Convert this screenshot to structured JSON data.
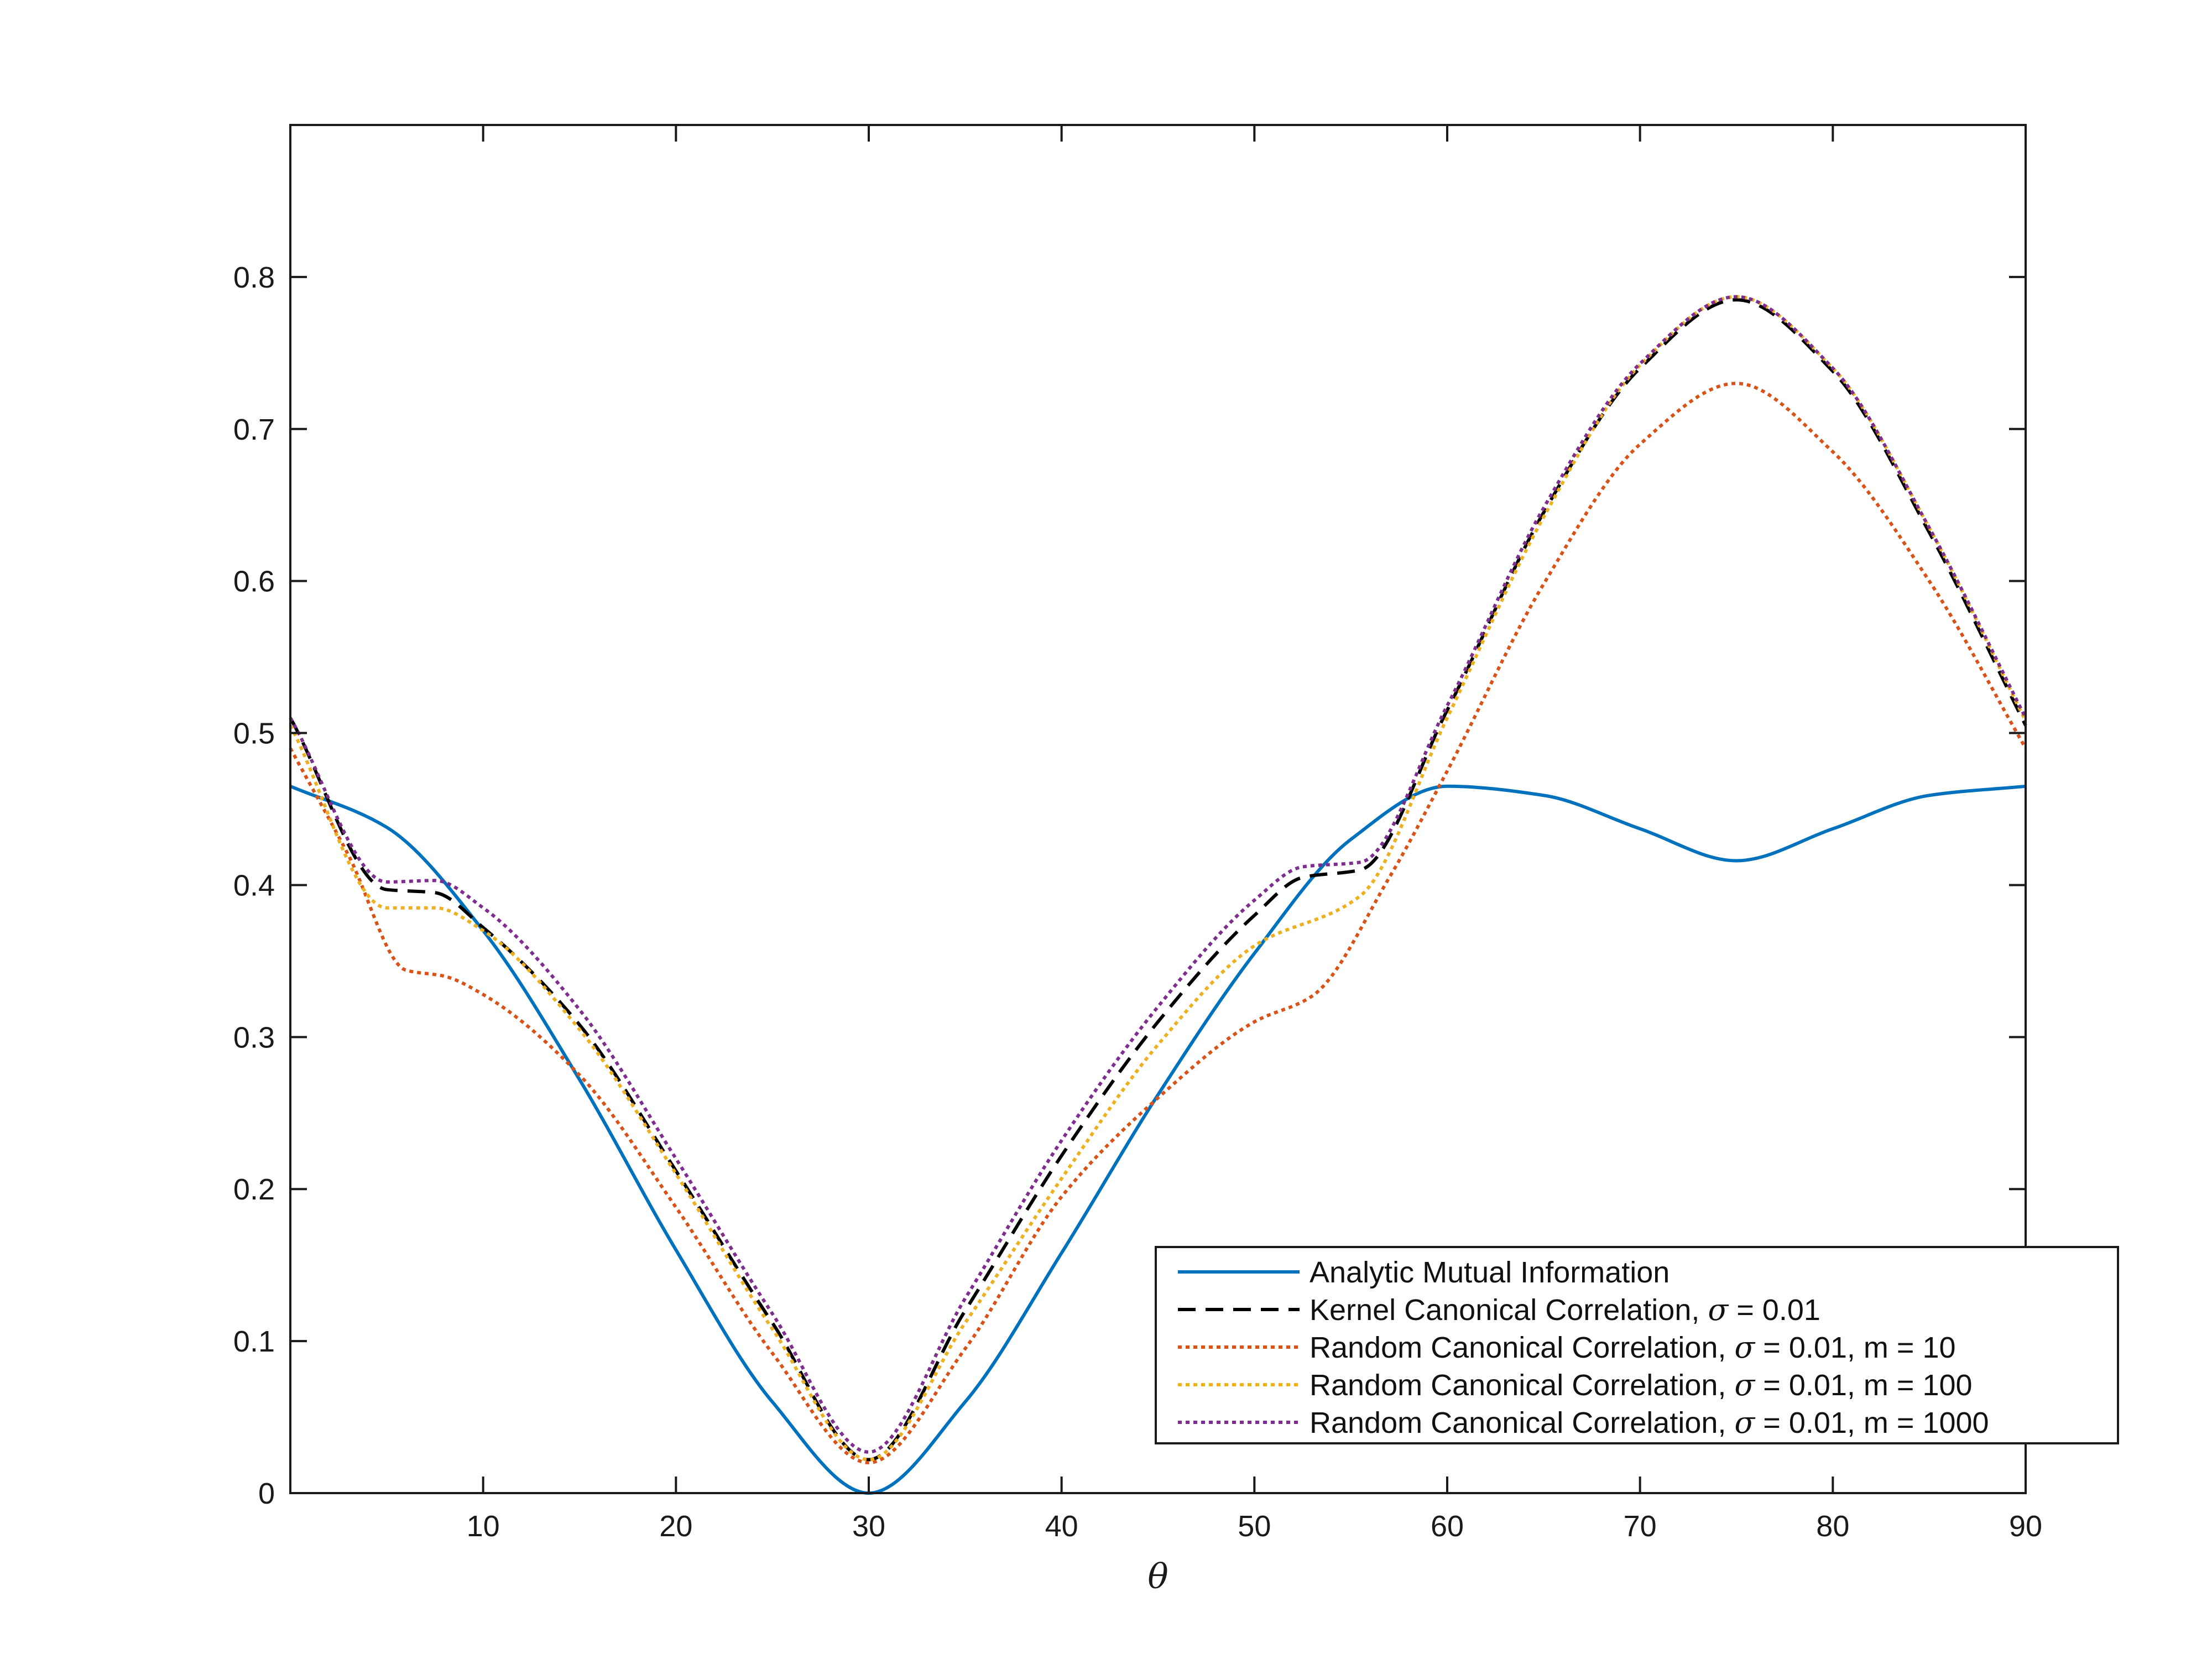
{
  "chart_data": {
    "type": "line",
    "title": "",
    "xlabel": "θ",
    "ylabel": "",
    "xlim": [
      0,
      90
    ],
    "ylim": [
      0,
      0.9
    ],
    "xticks": [
      10,
      20,
      30,
      40,
      50,
      60,
      70,
      80,
      90
    ],
    "yticks": [
      0,
      0.1,
      0.2,
      0.3,
      0.4,
      0.5,
      0.6,
      0.7,
      0.8
    ],
    "xtick_labels": [
      "10",
      "20",
      "30",
      "40",
      "50",
      "60",
      "70",
      "80",
      "90"
    ],
    "ytick_labels": [
      "0",
      "0.1",
      "0.2",
      "0.3",
      "0.4",
      "0.5",
      "0.6",
      "0.7",
      "0.8"
    ],
    "grid": false,
    "legend_position": "bottom-right",
    "series": [
      {
        "name": "Analytic Mutual Information",
        "color": "#0072BD",
        "style": "solid",
        "x": [
          0,
          5,
          10,
          15,
          20,
          25,
          30,
          35,
          40,
          45,
          50,
          55,
          60,
          65,
          70,
          75,
          80,
          85,
          90
        ],
        "y": [
          0.465,
          0.438,
          0.37,
          0.272,
          0.16,
          0.06,
          0,
          0.06,
          0.158,
          0.262,
          0.355,
          0.43,
          0.465,
          0.459,
          0.437,
          0.416,
          0.437,
          0.459,
          0.465
        ]
      },
      {
        "name": "Kernel Canonical Correlation, σ = 0.01",
        "color": "#000000",
        "style": "dashed",
        "x": [
          0,
          5,
          7.5,
          10,
          15,
          20,
          25,
          30,
          35,
          40,
          45,
          50,
          52.5,
          55.5,
          60,
          65,
          70,
          75,
          80,
          85,
          90
        ],
        "y": [
          0.51,
          0.397,
          0.395,
          0.372,
          0.308,
          0.212,
          0.112,
          0.022,
          0.12,
          0.222,
          0.31,
          0.38,
          0.405,
          0.41,
          0.515,
          0.645,
          0.74,
          0.785,
          0.738,
          0.632,
          0.505
        ]
      },
      {
        "name": "Random Canonical Correlation, σ = 0.01, m = 10",
        "color": "#D95319",
        "style": "dotted",
        "x": [
          0,
          3,
          6,
          8,
          10,
          15,
          20,
          25,
          30,
          35,
          40,
          45,
          50,
          53,
          57,
          60,
          65,
          70,
          75,
          80,
          85,
          90
        ],
        "y": [
          0.49,
          0.42,
          0.344,
          0.34,
          0.328,
          0.275,
          0.188,
          0.092,
          0.02,
          0.095,
          0.195,
          0.26,
          0.31,
          0.327,
          0.405,
          0.475,
          0.598,
          0.69,
          0.73,
          0.685,
          0.6,
          0.49
        ]
      },
      {
        "name": "Random Canonical Correlation, σ = 0.01, m = 100",
        "color": "#EDB120",
        "style": "dotted",
        "x": [
          0,
          5,
          7.5,
          10,
          15,
          20,
          25,
          30,
          35,
          40,
          45,
          50,
          55.5,
          60,
          65,
          70,
          75,
          80,
          85,
          90
        ],
        "y": [
          0.505,
          0.385,
          0.385,
          0.37,
          0.305,
          0.21,
          0.108,
          0.022,
          0.112,
          0.207,
          0.295,
          0.36,
          0.393,
          0.51,
          0.642,
          0.742,
          0.787,
          0.74,
          0.635,
          0.508
        ]
      },
      {
        "name": "Random Canonical Correlation, σ = 0.01, m = 1000",
        "color": "#7E2F8E",
        "style": "dotted",
        "x": [
          0,
          5,
          7.5,
          10,
          15,
          20,
          25,
          30,
          35,
          40,
          45,
          50,
          52.5,
          55.5,
          60,
          65,
          70,
          75,
          80,
          85,
          90
        ],
        "y": [
          0.51,
          0.402,
          0.403,
          0.385,
          0.318,
          0.22,
          0.118,
          0.027,
          0.128,
          0.232,
          0.32,
          0.39,
          0.412,
          0.415,
          0.518,
          0.648,
          0.743,
          0.787,
          0.74,
          0.635,
          0.51
        ]
      }
    ]
  },
  "legend": {
    "entries": [
      {
        "prefix": "Analytic Mutual Information",
        "sigma": "",
        "suffix": ""
      },
      {
        "prefix": "Kernel Canonical Correlation, ",
        "sigma": "σ",
        "suffix": " = 0.01"
      },
      {
        "prefix": "Random Canonical Correlation, ",
        "sigma": "σ",
        "suffix": " = 0.01, m = 10"
      },
      {
        "prefix": "Random Canonical Correlation, ",
        "sigma": "σ",
        "suffix": " = 0.01, m = 100"
      },
      {
        "prefix": "Random Canonical Correlation, ",
        "sigma": "σ",
        "suffix": " = 0.01, m = 1000"
      }
    ]
  }
}
